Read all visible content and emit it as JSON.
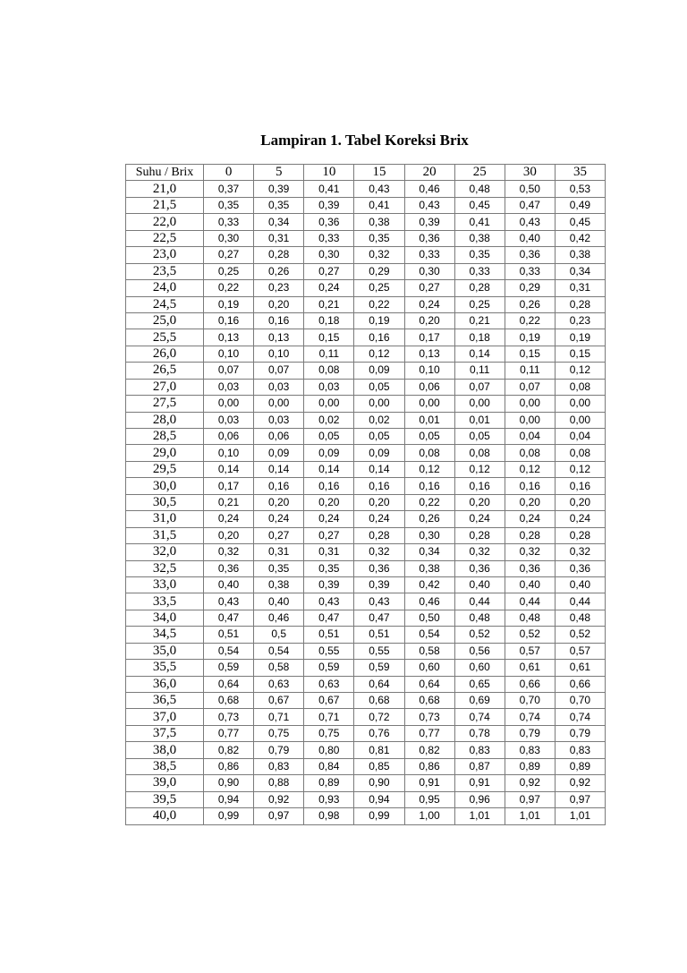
{
  "title": "Lampiran 1. Tabel Koreksi Brix",
  "table": {
    "headers": [
      "Suhu / Brix",
      "0",
      "5",
      "10",
      "15",
      "20",
      "25",
      "30",
      "35"
    ],
    "rows": [
      [
        "21,0",
        "0,37",
        "0,39",
        "0,41",
        "0,43",
        "0,46",
        "0,48",
        "0,50",
        "0,53"
      ],
      [
        "21,5",
        "0,35",
        "0,35",
        "0,39",
        "0,41",
        "0,43",
        "0,45",
        "0,47",
        "0,49"
      ],
      [
        "22,0",
        "0,33",
        "0,34",
        "0,36",
        "0,38",
        "0,39",
        "0,41",
        "0,43",
        "0,45"
      ],
      [
        "22,5",
        "0,30",
        "0,31",
        "0,33",
        "0,35",
        "0,36",
        "0,38",
        "0,40",
        "0,42"
      ],
      [
        "23,0",
        "0,27",
        "0,28",
        "0,30",
        "0,32",
        "0,33",
        "0,35",
        "0,36",
        "0,38"
      ],
      [
        "23,5",
        "0,25",
        "0,26",
        "0,27",
        "0,29",
        "0,30",
        "0,33",
        "0,33",
        "0,34"
      ],
      [
        "24,0",
        "0,22",
        "0,23",
        "0,24",
        "0,25",
        "0,27",
        "0,28",
        "0,29",
        "0,31"
      ],
      [
        "24,5",
        "0,19",
        "0,20",
        "0,21",
        "0,22",
        "0,24",
        "0,25",
        "0,26",
        "0,28"
      ],
      [
        "25,0",
        "0,16",
        "0,16",
        "0,18",
        "0,19",
        "0,20",
        "0,21",
        "0,22",
        "0,23"
      ],
      [
        "25,5",
        "0,13",
        "0,13",
        "0,15",
        "0,16",
        "0,17",
        "0,18",
        "0,19",
        "0,19"
      ],
      [
        "26,0",
        "0,10",
        "0,10",
        "0,11",
        "0,12",
        "0,13",
        "0,14",
        "0,15",
        "0,15"
      ],
      [
        "26,5",
        "0,07",
        "0,07",
        "0,08",
        "0,09",
        "0,10",
        "0,11",
        "0,11",
        "0,12"
      ],
      [
        "27,0",
        "0,03",
        "0,03",
        "0,03",
        "0,05",
        "0,06",
        "0,07",
        "0,07",
        "0,08"
      ],
      [
        "27,5",
        "0,00",
        "0,00",
        "0,00",
        "0,00",
        "0,00",
        "0,00",
        "0,00",
        "0,00"
      ],
      [
        "28,0",
        "0,03",
        "0,03",
        "0,02",
        "0,02",
        "0,01",
        "0,01",
        "0,00",
        "0,00"
      ],
      [
        "28,5",
        "0,06",
        "0,06",
        "0,05",
        "0,05",
        "0,05",
        "0,05",
        "0,04",
        "0,04"
      ],
      [
        "29,0",
        "0,10",
        "0,09",
        "0,09",
        "0,09",
        "0,08",
        "0,08",
        "0,08",
        "0,08"
      ],
      [
        "29,5",
        "0,14",
        "0,14",
        "0,14",
        "0,14",
        "0,12",
        "0,12",
        "0,12",
        "0,12"
      ],
      [
        "30,0",
        "0,17",
        "0,16",
        "0,16",
        "0,16",
        "0,16",
        "0,16",
        "0,16",
        "0,16"
      ],
      [
        "30,5",
        "0,21",
        "0,20",
        "0,20",
        "0,20",
        "0,22",
        "0,20",
        "0,20",
        "0,20"
      ],
      [
        "31,0",
        "0,24",
        "0,24",
        "0,24",
        "0,24",
        "0,26",
        "0,24",
        "0,24",
        "0,24"
      ],
      [
        "31,5",
        "0,20",
        "0,27",
        "0,27",
        "0,28",
        "0,30",
        "0,28",
        "0,28",
        "0,28"
      ],
      [
        "32,0",
        "0,32",
        "0,31",
        "0,31",
        "0,32",
        "0,34",
        "0,32",
        "0,32",
        "0,32"
      ],
      [
        "32,5",
        "0,36",
        "0,35",
        "0,35",
        "0,36",
        "0,38",
        "0,36",
        "0,36",
        "0,36"
      ],
      [
        "33,0",
        "0,40",
        "0,38",
        "0,39",
        "0,39",
        "0,42",
        "0,40",
        "0,40",
        "0,40"
      ],
      [
        "33,5",
        "0,43",
        "0,40",
        "0,43",
        "0,43",
        "0,46",
        "0,44",
        "0,44",
        "0,44"
      ],
      [
        "34,0",
        "0,47",
        "0,46",
        "0,47",
        "0,47",
        "0,50",
        "0,48",
        "0,48",
        "0,48"
      ],
      [
        "34,5",
        "0,51",
        "0,5",
        "0,51",
        "0,51",
        "0,54",
        "0,52",
        "0,52",
        "0,52"
      ],
      [
        "35,0",
        "0,54",
        "0,54",
        "0,55",
        "0,55",
        "0,58",
        "0,56",
        "0,57",
        "0,57"
      ],
      [
        "35,5",
        "0,59",
        "0,58",
        "0,59",
        "0,59",
        "0,60",
        "0,60",
        "0,61",
        "0,61"
      ],
      [
        "36,0",
        "0,64",
        "0,63",
        "0,63",
        "0,64",
        "0,64",
        "0,65",
        "0,66",
        "0,66"
      ],
      [
        "36,5",
        "0,68",
        "0,67",
        "0,67",
        "0,68",
        "0,68",
        "0,69",
        "0,70",
        "0,70"
      ],
      [
        "37,0",
        "0,73",
        "0,71",
        "0,71",
        "0,72",
        "0,73",
        "0,74",
        "0,74",
        "0,74"
      ],
      [
        "37,5",
        "0,77",
        "0,75",
        "0,75",
        "0,76",
        "0,77",
        "0,78",
        "0,79",
        "0,79"
      ],
      [
        "38,0",
        "0,82",
        "0,79",
        "0,80",
        "0,81",
        "0,82",
        "0,83",
        "0,83",
        "0,83"
      ],
      [
        "38,5",
        "0,86",
        "0,83",
        "0,84",
        "0,85",
        "0,86",
        "0,87",
        "0,89",
        "0,89"
      ],
      [
        "39,0",
        "0,90",
        "0,88",
        "0,89",
        "0,90",
        "0,91",
        "0,91",
        "0,92",
        "0,92"
      ],
      [
        "39,5",
        "0,94",
        "0,92",
        "0,93",
        "0,94",
        "0,95",
        "0,96",
        "0,97",
        "0,97"
      ],
      [
        "40,0",
        "0,99",
        "0,97",
        "0,98",
        "0,99",
        "1,00",
        "1,01",
        "1,01",
        "1,01"
      ]
    ]
  }
}
